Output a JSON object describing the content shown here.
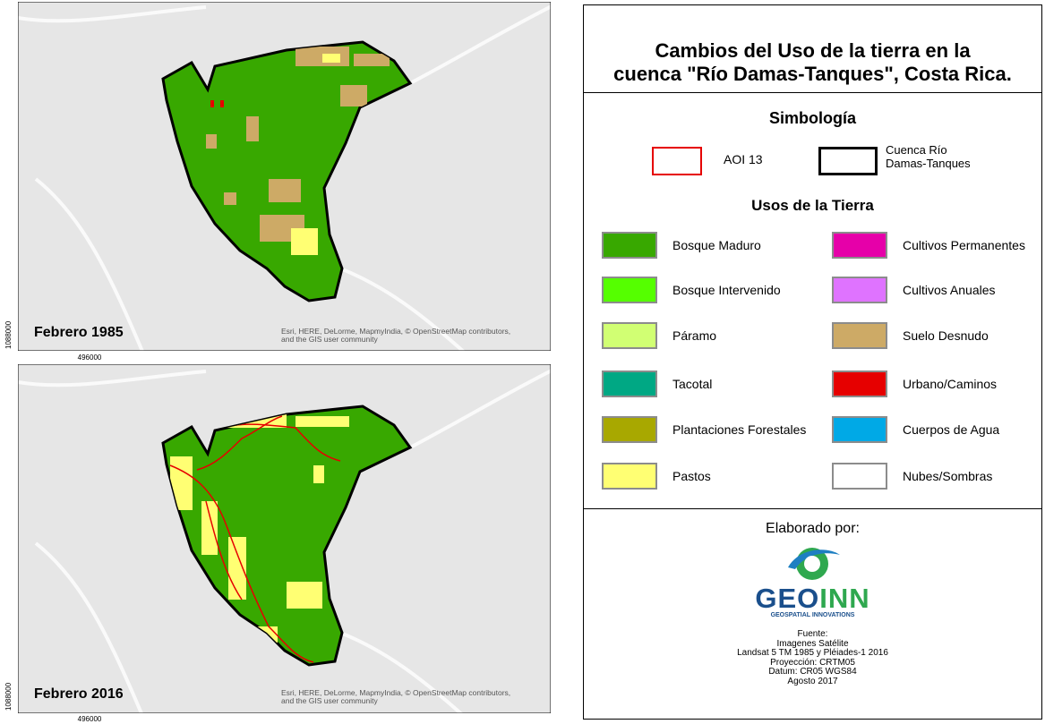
{
  "maps": [
    {
      "label": "Febrero 1985",
      "attribution": [
        "Esri, HERE, DeLorme, MapmyIndia, © OpenStreetMap contributors,",
        "and the GIS user community"
      ],
      "easting": 496000,
      "northing": 1088000
    },
    {
      "label": "Febrero 2016",
      "attribution": [
        "Esri, HERE, DeLorme, MapmyIndia, © OpenStreetMap contributors,",
        "and the GIS user community"
      ],
      "easting": 496000,
      "northing": 1088000
    }
  ],
  "title": [
    "Cambios del Uso de la tierra en la",
    "cuenca \"Río Damas-Tanques\", Costa Rica."
  ],
  "symbology": {
    "title": "Simbología",
    "items": [
      {
        "label": [
          "AOI 13"
        ],
        "color": "#e60000"
      },
      {
        "label": [
          "Cuenca Río",
          "Damas-Tanques"
        ],
        "color": "#000000"
      }
    ]
  },
  "land_use": {
    "title": "Usos de la Tierra",
    "classes": [
      {
        "label": "Bosque Maduro",
        "color": "#38a800"
      },
      {
        "label": "Bosque Intervenido",
        "color": "#55ff00"
      },
      {
        "label": "Páramo",
        "color": "#d1ff73"
      },
      {
        "label": "Tacotal",
        "color": "#00a884"
      },
      {
        "label": "Plantaciones Forestales",
        "color": "#a8a800"
      },
      {
        "label": "Pastos",
        "color": "#ffff73"
      },
      {
        "label": "Cultivos Permanentes",
        "color": "#e600a9"
      },
      {
        "label": "Cultivos Anuales",
        "color": "#df73ff"
      },
      {
        "label": "Suelo Desnudo",
        "color": "#cdaa66"
      },
      {
        "label": "Urbano/Caminos",
        "color": "#e60000"
      },
      {
        "label": "Cuerpos de Agua",
        "color": "#00a9e6"
      },
      {
        "label": "Nubes/Sombras",
        "color": "#ffffff"
      }
    ]
  },
  "credits": {
    "heading": "Elaborado por:",
    "logo": [
      "GEO",
      "INN"
    ],
    "tagline": "GEOSPATIAL INNOVATIONS",
    "source": [
      "Fuente:",
      "Imagenes Satélite",
      "Landsat 5 TM 1985 y Pléiades-1 2016",
      "Proyección: CRTM05",
      "Datum: CR05 WGS84",
      "Agosto 2017"
    ]
  }
}
